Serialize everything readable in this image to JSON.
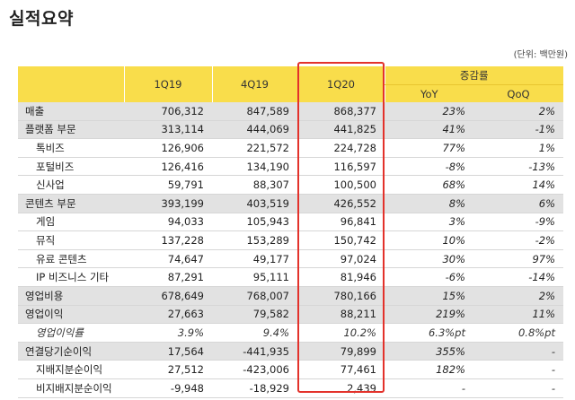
{
  "page": {
    "title": "실적요약",
    "unit_note": "(단위: 백만원)"
  },
  "table": {
    "columns": [
      "1Q19",
      "4Q19",
      "1Q20"
    ],
    "growth_header": "증감률",
    "growth_columns": [
      "YoY",
      "QoQ"
    ],
    "rows": [
      {
        "label": "매출",
        "values": [
          "706,312",
          "847,589",
          "868,377"
        ],
        "yoy": "23%",
        "qoq": "2%"
      },
      {
        "label": "플랫폼 부문",
        "values": [
          "313,114",
          "444,069",
          "441,825"
        ],
        "yoy": "41%",
        "qoq": "-1%"
      },
      {
        "label": "톡비즈",
        "values": [
          "126,906",
          "221,572",
          "224,728"
        ],
        "yoy": "77%",
        "qoq": "1%"
      },
      {
        "label": "포털비즈",
        "values": [
          "126,416",
          "134,190",
          "116,597"
        ],
        "yoy": "-8%",
        "qoq": "-13%"
      },
      {
        "label": "신사업",
        "values": [
          "59,791",
          "88,307",
          "100,500"
        ],
        "yoy": "68%",
        "qoq": "14%"
      },
      {
        "label": "콘텐츠 부문",
        "values": [
          "393,199",
          "403,519",
          "426,552"
        ],
        "yoy": "8%",
        "qoq": "6%"
      },
      {
        "label": "게임",
        "values": [
          "94,033",
          "105,943",
          "96,841"
        ],
        "yoy": "3%",
        "qoq": "-9%"
      },
      {
        "label": "뮤직",
        "values": [
          "137,228",
          "153,289",
          "150,742"
        ],
        "yoy": "10%",
        "qoq": "-2%"
      },
      {
        "label": "유료 콘텐츠",
        "values": [
          "74,647",
          "49,177",
          "97,024"
        ],
        "yoy": "30%",
        "qoq": "97%"
      },
      {
        "label": "IP 비즈니스 기타",
        "values": [
          "87,291",
          "95,111",
          "81,946"
        ],
        "yoy": "-6%",
        "qoq": "-14%"
      },
      {
        "label": "영업비용",
        "values": [
          "678,649",
          "768,007",
          "780,166"
        ],
        "yoy": "15%",
        "qoq": "2%"
      },
      {
        "label": "영업이익",
        "values": [
          "27,663",
          "79,582",
          "88,211"
        ],
        "yoy": "219%",
        "qoq": "11%"
      },
      {
        "label": "영업이익률",
        "values": [
          "3.9%",
          "9.4%",
          "10.2%"
        ],
        "yoy": "6.3%pt",
        "qoq": "0.8%pt"
      },
      {
        "label": "연결당기순이익",
        "values": [
          "17,564",
          "-441,935",
          "79,899"
        ],
        "yoy": "355%",
        "qoq": "-"
      },
      {
        "label": "지배지분순이익",
        "values": [
          "27,512",
          "-423,006",
          "77,461"
        ],
        "yoy": "182%",
        "qoq": "-"
      },
      {
        "label": "비지배지분순이익",
        "values": [
          "-9,948",
          "-18,929",
          "2,439"
        ],
        "yoy": "-",
        "qoq": "-"
      }
    ]
  },
  "colors": {
    "header_bg": "#f9dd4b",
    "shaded_row_bg": "#e2e2e2",
    "highlight_border": "#e3322b"
  }
}
